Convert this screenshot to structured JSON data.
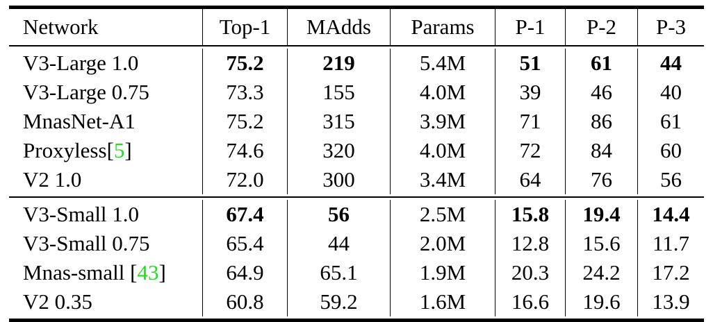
{
  "headers": [
    "Network",
    "Top-1",
    "MAdds",
    "Params",
    "P-1",
    "P-2",
    "P-3"
  ],
  "groups": [
    {
      "rows": [
        {
          "name": "V3-Large 1.0",
          "ref": "",
          "values": [
            "75.2",
            "219",
            "5.4M",
            "51",
            "61",
            "44"
          ],
          "bold": [
            true,
            true,
            false,
            true,
            true,
            true
          ]
        },
        {
          "name": "V3-Large 0.75",
          "ref": "",
          "values": [
            "73.3",
            "155",
            "4.0M",
            "39",
            "46",
            "40"
          ],
          "bold": [
            false,
            false,
            false,
            false,
            false,
            false
          ]
        },
        {
          "name": "MnasNet-A1",
          "ref": "",
          "values": [
            "75.2",
            "315",
            "3.9M",
            "71",
            "86",
            "61"
          ],
          "bold": [
            false,
            false,
            false,
            false,
            false,
            false
          ]
        },
        {
          "name": "Proxyless",
          "ref": "5",
          "values": [
            "74.6",
            "320",
            "4.0M",
            "72",
            "84",
            "60"
          ],
          "bold": [
            false,
            false,
            false,
            false,
            false,
            false
          ]
        },
        {
          "name": "V2 1.0",
          "ref": "",
          "values": [
            "72.0",
            "300",
            "3.4M",
            "64",
            "76",
            "56"
          ],
          "bold": [
            false,
            false,
            false,
            false,
            false,
            false
          ]
        }
      ]
    },
    {
      "rows": [
        {
          "name": "V3-Small 1.0",
          "ref": "",
          "values": [
            "67.4",
            "56",
            "2.5M",
            "15.8",
            "19.4",
            "14.4"
          ],
          "bold": [
            true,
            true,
            false,
            true,
            true,
            true
          ]
        },
        {
          "name": "V3-Small 0.75",
          "ref": "",
          "values": [
            "65.4",
            "44",
            "2.0M",
            "12.8",
            "15.6",
            "11.7"
          ],
          "bold": [
            false,
            false,
            false,
            false,
            false,
            false
          ]
        },
        {
          "name": "Mnas-small ",
          "ref": "43",
          "values": [
            "64.9",
            "65.1",
            "1.9M",
            "20.3",
            "24.2",
            "17.2"
          ],
          "bold": [
            false,
            false,
            false,
            false,
            false,
            false
          ]
        },
        {
          "name": "V2 0.35",
          "ref": "",
          "values": [
            "60.8",
            "59.2",
            "1.6M",
            "16.6",
            "19.6",
            "13.9"
          ],
          "bold": [
            false,
            false,
            false,
            false,
            false,
            false
          ]
        }
      ]
    }
  ],
  "ref_color": "#22dd22"
}
